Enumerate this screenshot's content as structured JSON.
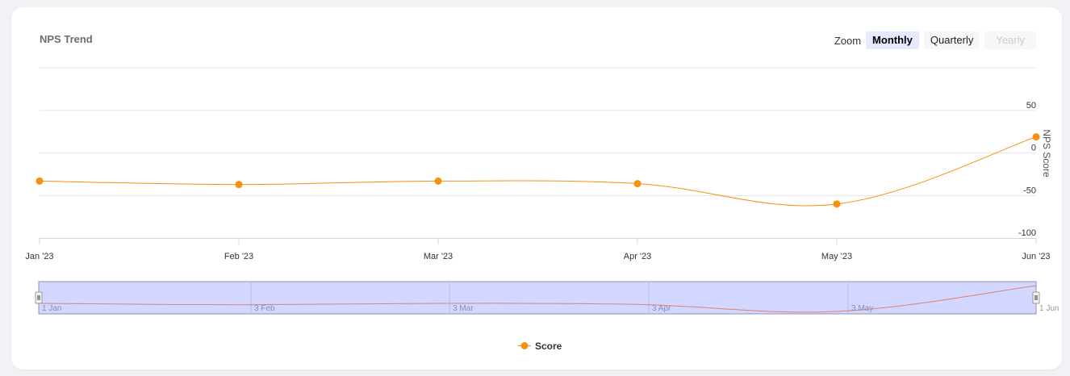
{
  "chart_data": {
    "type": "line",
    "title": "NPS Trend",
    "ylabel": "NPS Score",
    "ylim": [
      -100,
      50
    ],
    "y_ticks": [
      "50",
      "0",
      "-50",
      "-100"
    ],
    "y_tick_values": [
      50,
      0,
      -50,
      -100
    ],
    "x": [
      "Jan '23",
      "Feb '23",
      "Mar '23",
      "Apr '23",
      "May '23",
      "Jun '23"
    ],
    "series": [
      {
        "name": "Score",
        "values": [
          -33,
          -37,
          -33,
          -36,
          -60,
          19
        ],
        "color": "#f7910e"
      }
    ],
    "navigator_labels": [
      "1 Jan",
      "3 Feb",
      "3 Mar",
      "3 Apr",
      "3 May",
      "1 Jun"
    ],
    "legend": "bottom-center",
    "grid": true
  },
  "zoom": {
    "label": "Zoom",
    "buttons": [
      {
        "label": "Monthly",
        "state": "active"
      },
      {
        "label": "Quarterly",
        "state": "normal"
      },
      {
        "label": "Yearly",
        "state": "disabled"
      }
    ]
  }
}
